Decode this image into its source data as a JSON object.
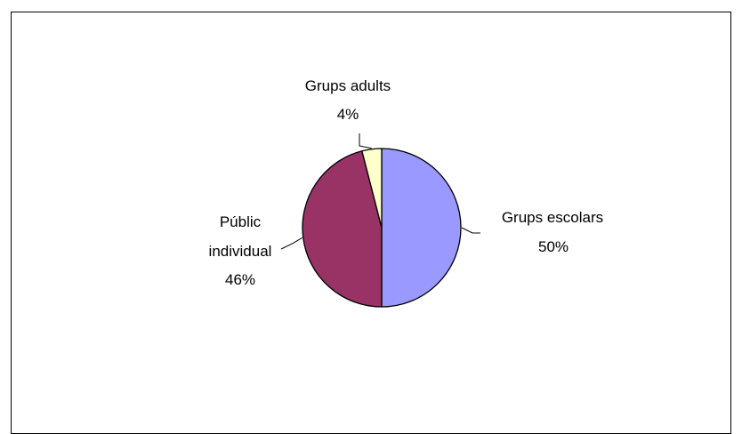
{
  "chart_data": {
    "type": "pie",
    "start_angle_deg": 0,
    "direction": "clockwise",
    "slices": [
      {
        "label": "Grups escolars",
        "value": 50,
        "value_label": "50%",
        "color": "#9999ff"
      },
      {
        "label": "Públic individual",
        "value": 46,
        "value_label": "46%",
        "color": "#993366"
      },
      {
        "label": "Grups adults",
        "value": 4,
        "value_label": "4%",
        "color": "#ffffcc"
      }
    ]
  }
}
